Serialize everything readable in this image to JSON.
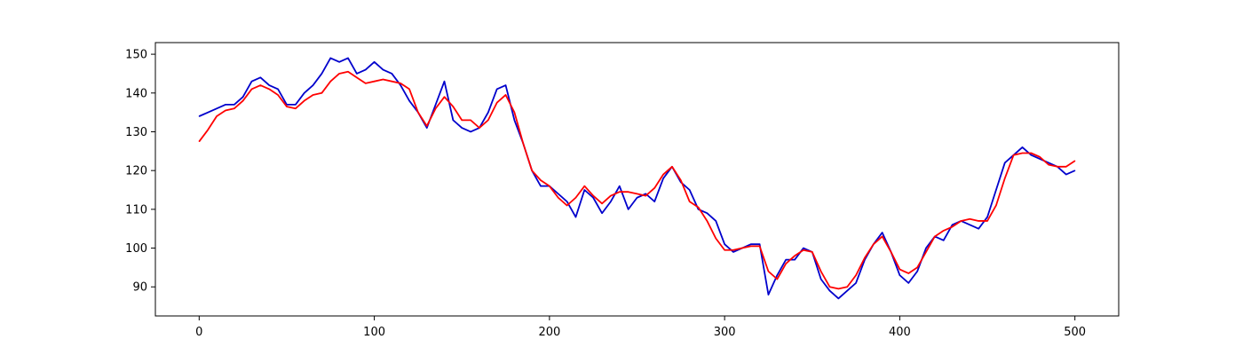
{
  "chart_data": {
    "type": "line",
    "title": "",
    "xlabel": "",
    "ylabel": "",
    "xlim": [
      -25,
      525
    ],
    "ylim": [
      82.5,
      153
    ],
    "xticks": [
      0,
      100,
      200,
      300,
      400,
      500
    ],
    "yticks": [
      90,
      100,
      110,
      120,
      130,
      140,
      150
    ],
    "grid": false,
    "legend": "none",
    "series": [
      {
        "color": "#0000cc",
        "x": [
          0,
          5,
          10,
          15,
          20,
          25,
          30,
          35,
          40,
          45,
          50,
          55,
          60,
          65,
          70,
          75,
          80,
          85,
          90,
          95,
          100,
          105,
          110,
          115,
          120,
          125,
          130,
          135,
          140,
          145,
          150,
          155,
          160,
          165,
          170,
          175,
          180,
          185,
          190,
          195,
          200,
          205,
          210,
          215,
          220,
          225,
          230,
          235,
          240,
          245,
          250,
          255,
          260,
          265,
          270,
          275,
          280,
          285,
          290,
          295,
          300,
          305,
          310,
          315,
          320,
          325,
          330,
          335,
          340,
          345,
          350,
          355,
          360,
          365,
          370,
          375,
          380,
          385,
          390,
          395,
          400,
          405,
          410,
          415,
          420,
          425,
          430,
          435,
          440,
          445,
          450,
          455,
          460,
          465,
          470,
          475,
          480,
          485,
          490,
          495,
          500
        ],
        "y": [
          134,
          135,
          136,
          137,
          137,
          139,
          143,
          144,
          142,
          141,
          137,
          137,
          140,
          142,
          145,
          149,
          148,
          149,
          145,
          146,
          148,
          146,
          145,
          142,
          138,
          135,
          131,
          137,
          143,
          133,
          131,
          130,
          131,
          135,
          141,
          142,
          133,
          127,
          120,
          116,
          116,
          114,
          112,
          108,
          115,
          113,
          109,
          112,
          116,
          110,
          113,
          114,
          112,
          118,
          121,
          117,
          115,
          110,
          109,
          107,
          101,
          99,
          100,
          101,
          101,
          88,
          93,
          97,
          97,
          100,
          99,
          92,
          89,
          87,
          89,
          91,
          97,
          101,
          104,
          99,
          93,
          91,
          94,
          100,
          103,
          102,
          106,
          107,
          106,
          105,
          108,
          115,
          122,
          124,
          126,
          124,
          123,
          122,
          121,
          119,
          120
        ]
      },
      {
        "color": "#ff0000",
        "x": [
          0,
          5,
          10,
          15,
          20,
          25,
          30,
          35,
          40,
          45,
          50,
          55,
          60,
          65,
          70,
          75,
          80,
          85,
          90,
          95,
          100,
          105,
          110,
          115,
          120,
          125,
          130,
          135,
          140,
          145,
          150,
          155,
          160,
          165,
          170,
          175,
          180,
          185,
          190,
          195,
          200,
          205,
          210,
          215,
          220,
          225,
          230,
          235,
          240,
          245,
          250,
          255,
          260,
          265,
          270,
          275,
          280,
          285,
          290,
          295,
          300,
          305,
          310,
          315,
          320,
          325,
          330,
          335,
          340,
          345,
          350,
          355,
          360,
          365,
          370,
          375,
          380,
          385,
          390,
          395,
          400,
          405,
          410,
          415,
          420,
          425,
          430,
          435,
          440,
          445,
          450,
          455,
          460,
          465,
          470,
          475,
          480,
          485,
          490,
          495,
          500
        ],
        "y": [
          127.5,
          130.5,
          134,
          135.5,
          136,
          138,
          141,
          142,
          141,
          139.5,
          136.5,
          136,
          138,
          139.5,
          140,
          143,
          145,
          145.5,
          144,
          142.5,
          143,
          143.5,
          143,
          142.5,
          141,
          135,
          131.5,
          136,
          139,
          136.5,
          133,
          133,
          131,
          133,
          137.5,
          139.5,
          135,
          127,
          120,
          117.5,
          116,
          113,
          111,
          113,
          116,
          113.5,
          111.5,
          113.5,
          114.5,
          114.5,
          114,
          113.5,
          115.5,
          119,
          121,
          117.5,
          112,
          110.5,
          107,
          102.5,
          99.5,
          99.5,
          100,
          100.5,
          100.5,
          94,
          92,
          96,
          98,
          99.5,
          99,
          94,
          90,
          89.5,
          90,
          93,
          97.5,
          101,
          103,
          99,
          94.5,
          93.5,
          95,
          99,
          103,
          104.5,
          105.5,
          107,
          107.5,
          107,
          107,
          111,
          118,
          124,
          124.5,
          124.5,
          123.5,
          121.5,
          121,
          121,
          122.5
        ]
      }
    ]
  }
}
